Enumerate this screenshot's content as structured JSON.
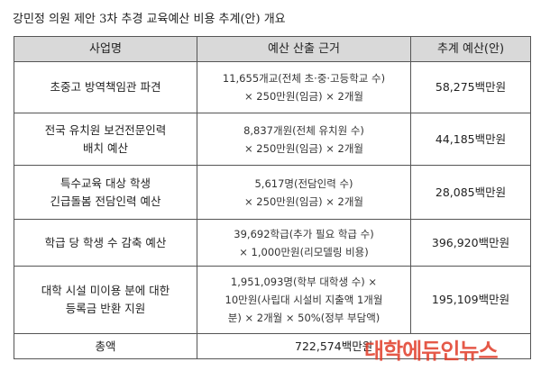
{
  "title": "강민정 의원 제안 3차 추경 교육예산 비용 추계(안) 개요",
  "table": {
    "header": [
      "사업명",
      "예산 산출 근거",
      "추계 예산(안)"
    ],
    "rows": [
      {
        "name": [
          "초중고 방역책임관 파견"
        ],
        "basis": [
          "11,655개교(전체 초·중·고등학교 수)",
          "× 250만원(임금) × 2개월"
        ],
        "amount": "58,275백만원"
      },
      {
        "name": [
          "전국 유치원 보건전문인력",
          "배치 예산"
        ],
        "basis": [
          "8,837개원(전체 유치원 수)",
          "× 250만원(임금) × 2개월"
        ],
        "amount": "44,185백만원"
      },
      {
        "name": [
          "특수교육 대상 학생",
          "긴급돌봄 전담인력 예산"
        ],
        "basis": [
          "5,617명(전담인력 수)",
          "× 250만원(임금) × 2개월"
        ],
        "amount": "28,085백만원"
      },
      {
        "name": [
          "학급 당 학생 수 감축 예산"
        ],
        "basis": [
          "39,692학급(추가 필요 학급 수)",
          "× 1,000만원(리모델링 비용)"
        ],
        "amount": "396,920백만원"
      },
      {
        "name": [
          "대학 시설 미이용 분에 대한",
          "등록금 반환 지원"
        ],
        "basis": [
          "1,951,093명(학부 대학생 수) ×",
          "10만원(사립대 시설비 지출액 1개월",
          "분) × 2개월 × 50%(정부 부담액)"
        ],
        "amount": "195,109백만원"
      }
    ],
    "total": {
      "label": "총액",
      "amount": "722,574백만원"
    }
  },
  "watermark": "대학에듀인뉴스"
}
